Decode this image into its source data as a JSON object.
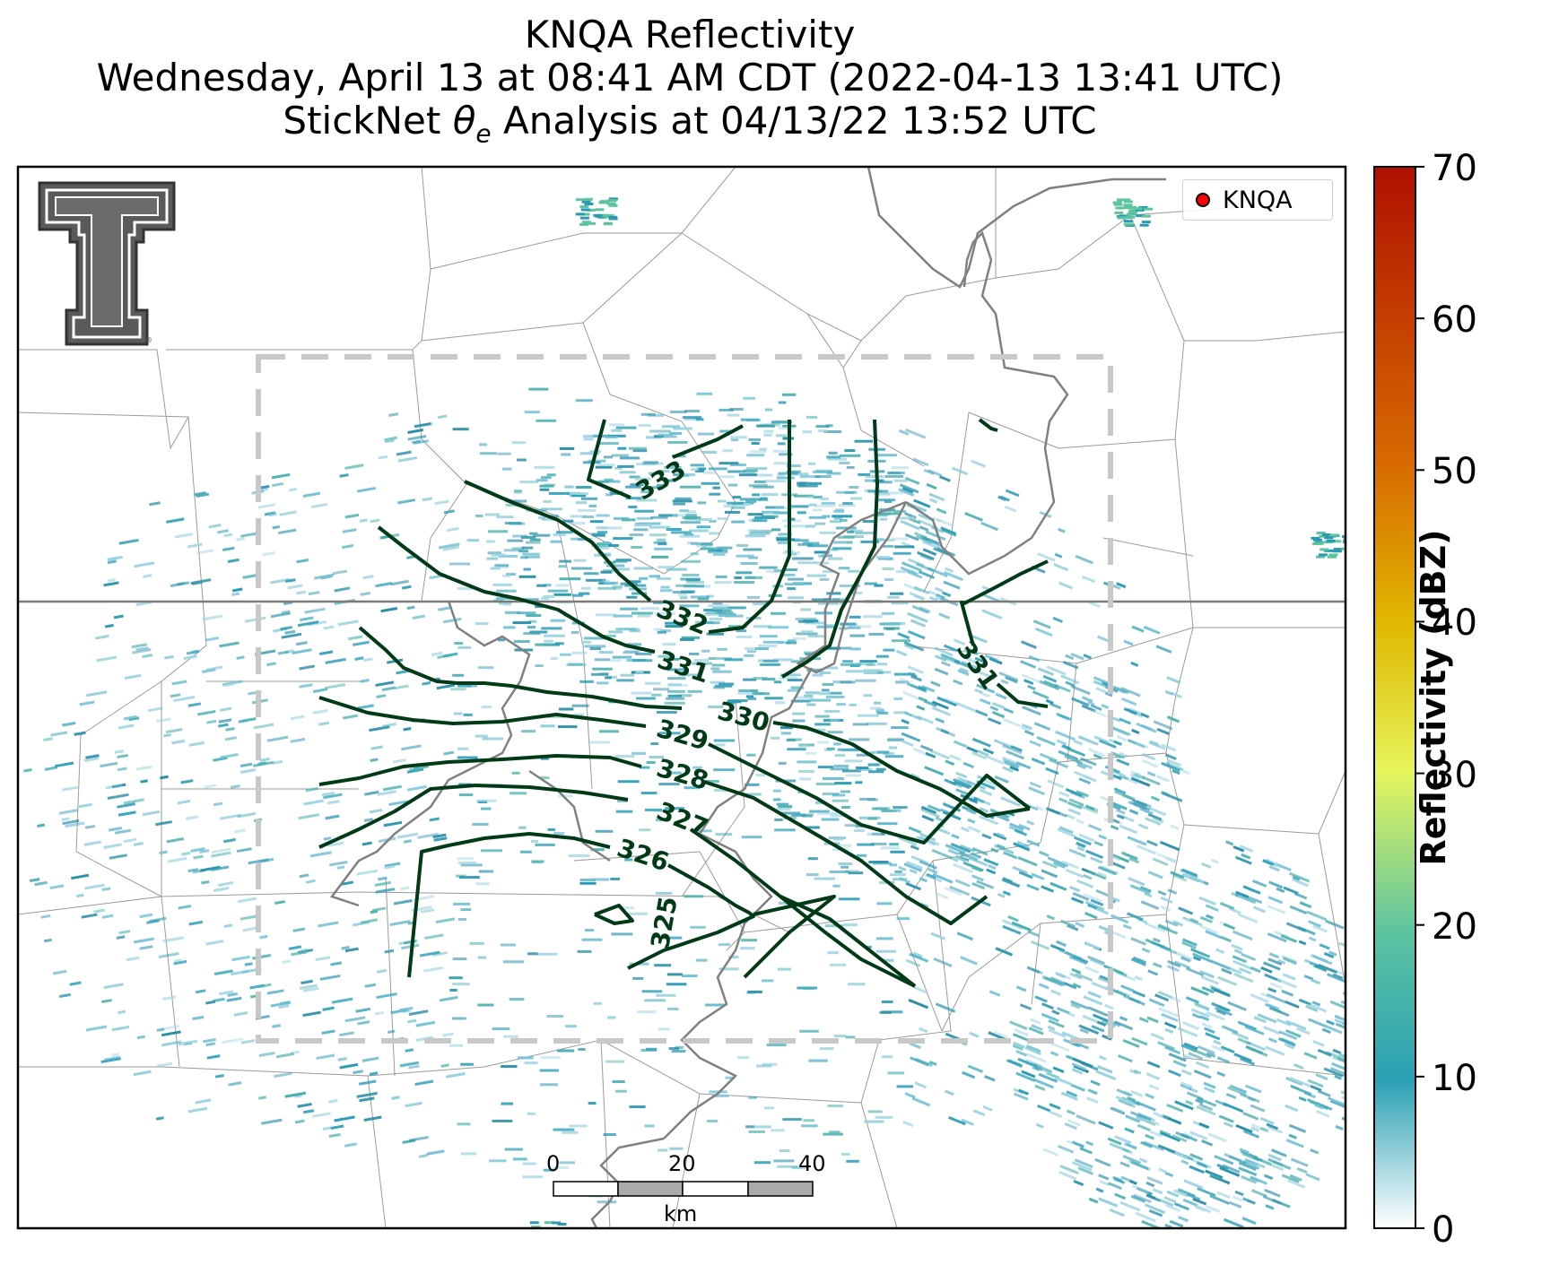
{
  "header": {
    "title": "KNQA Reflectivity",
    "subtitle": "Wednesday, April 13 at 08:41 AM CDT (2022-04-13 13:41 UTC)",
    "analysis_prefix": "StickNet ",
    "analysis_symbol": "θ",
    "analysis_subscript": "e",
    "analysis_suffix": " Analysis at 04/13/22 13:52 UTC"
  },
  "legend": {
    "station_label": "KNQA",
    "marker_color": "#ff0000"
  },
  "colorbar": {
    "label": "Reflectivity (dBZ)",
    "ticks": [
      "0",
      "10",
      "20",
      "30",
      "40",
      "50",
      "60",
      "70"
    ],
    "min": 0,
    "max": 70,
    "stops": [
      "#ffffff",
      "#2aa0b4",
      "#5dc4a0",
      "#e6f55c",
      "#e0b800",
      "#d86a00",
      "#b01000"
    ]
  },
  "contours": {
    "color": "#003a17",
    "labels": [
      "333",
      "332",
      "331",
      "330",
      "329",
      "328",
      "327",
      "326",
      "325",
      "331"
    ]
  },
  "scale_bar": {
    "labels": [
      "0",
      "20",
      "40"
    ],
    "unit": "km"
  },
  "colors": {
    "state_border": "#808080",
    "county_border": "#9a9a9a",
    "river": "#808080",
    "domain_box": "#c8c8c8",
    "echo": "#2a9ab4"
  }
}
